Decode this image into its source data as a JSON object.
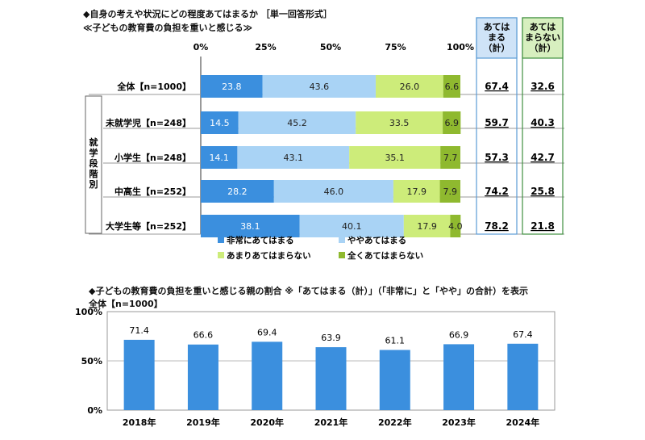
{
  "header": {
    "question": "◆自身の考えや状況にどの程度あてはまるか ［単一回答形式］",
    "subtitle": "≪子どもの教育費の負担を重いと感じる≫"
  },
  "columns": {
    "agree_total": "あてはまる（計）",
    "disagree_total": "あてはまらない（計）"
  },
  "colors": {
    "very": "#3b8fde",
    "somewhat": "#a9d3f5",
    "not_very": "#cdec7a",
    "not_at_all": "#8fb92f",
    "col_blue_border": "#5b9bd5",
    "col_green_border": "#3f8f3f"
  },
  "group_label": "就学段階別",
  "chart_data": [
    {
      "type": "bar",
      "orientation": "horizontal-stacked-100",
      "x_ticks": [
        "0%",
        "25%",
        "50%",
        "75%",
        "100%"
      ],
      "xlim": [
        0,
        100
      ],
      "categories": [
        "全体【n=1000】",
        "未就学児【n=248】",
        "小学生【n=248】",
        "中高生【n=252】",
        "大学生等【n=252】"
      ],
      "series": [
        {
          "name": "非常にあてはまる",
          "values": [
            23.8,
            14.5,
            14.1,
            28.2,
            38.1
          ]
        },
        {
          "name": "ややあてはまる",
          "values": [
            43.6,
            45.2,
            43.1,
            46.0,
            40.1
          ]
        },
        {
          "name": "あまりあてはまらない",
          "values": [
            26.0,
            33.5,
            35.1,
            17.9,
            17.9
          ]
        },
        {
          "name": "全くあてはまらない",
          "values": [
            6.6,
            6.9,
            7.7,
            7.9,
            4.0
          ]
        }
      ],
      "value_labels": [
        [
          "23.8",
          "43.6",
          "26.0",
          "6.6"
        ],
        [
          "14.5",
          "45.2",
          "33.5",
          "6.9"
        ],
        [
          "14.1",
          "43.1",
          "35.1",
          "7.7"
        ],
        [
          "28.2",
          "46.0",
          "17.9",
          "7.9"
        ],
        [
          "38.1",
          "40.1",
          "17.9",
          "4.0"
        ]
      ],
      "agree_total": [
        "67.4",
        "59.7",
        "57.3",
        "74.2",
        "78.2"
      ],
      "disagree_total": [
        "32.6",
        "40.3",
        "42.7",
        "25.8",
        "21.8"
      ],
      "legend_position": "bottom"
    },
    {
      "type": "bar",
      "title": "◆子どもの教育費の負担を重いと感じる親の割合 ※「あてはまる（計）」（「非常に」と「やや」の合計）を表示",
      "subtitle": "全体【n=1000】",
      "categories": [
        "2018年",
        "2019年",
        "2020年",
        "2021年",
        "2022年",
        "2023年",
        "2024年"
      ],
      "values": [
        71.4,
        66.6,
        69.4,
        63.9,
        61.1,
        66.9,
        67.4
      ],
      "labels": [
        "71.4",
        "66.6",
        "69.4",
        "63.9",
        "61.1",
        "66.9",
        "67.4"
      ],
      "y_ticks": [
        "100%",
        "50%",
        "0%"
      ],
      "ylim": [
        0,
        100
      ],
      "grid": true,
      "bar_color": "#3b8fde"
    }
  ]
}
